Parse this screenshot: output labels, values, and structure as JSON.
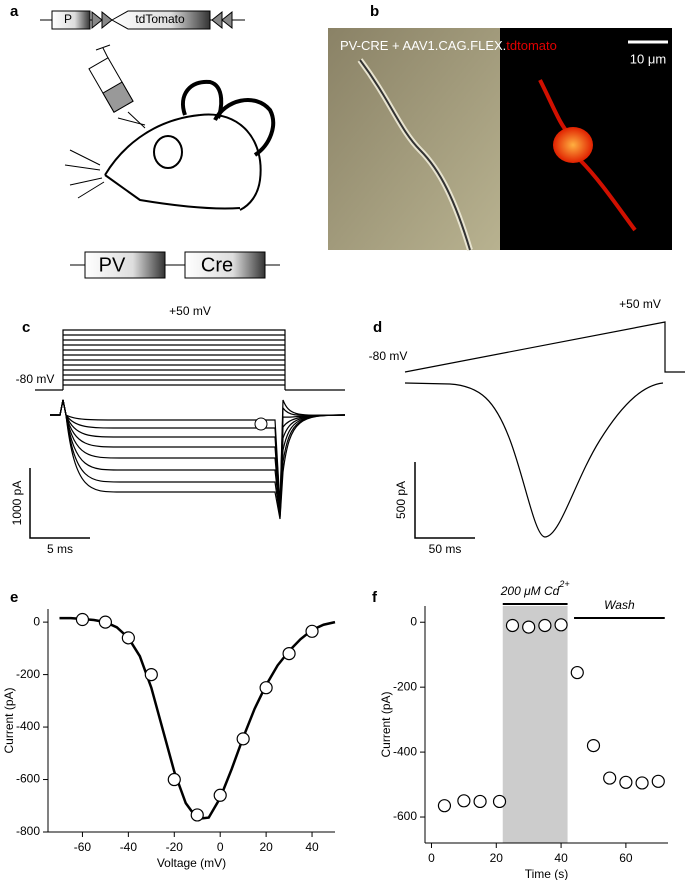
{
  "panels": {
    "a": {
      "label": "a",
      "promoter": "P",
      "reporter": "tdTomato",
      "gene1": "PV",
      "gene2": "Cre"
    },
    "b": {
      "label": "b",
      "caption": "PV-CRE + AAV1.CAG.FLEX.",
      "caption_red": "tdtomato",
      "scale": "10 μm"
    },
    "c": {
      "label": "c",
      "top_voltage": "+50 mV",
      "hold_voltage": "-80 mV",
      "scale_y": "1000 pA",
      "scale_x": "5 ms"
    },
    "d": {
      "label": "d",
      "top_voltage": "+50 mV",
      "hold_voltage": "-80 mV",
      "scale_y": "500 pA",
      "scale_x": "50 ms"
    }
  },
  "chart_data": [
    {
      "type": "scatter",
      "panel": "e",
      "xlabel": "Voltage (mV)",
      "ylabel": "Current (pA)",
      "xlim": [
        -75,
        50
      ],
      "ylim": [
        -800,
        50
      ],
      "xticks": [
        -60,
        -40,
        -20,
        0,
        20,
        40
      ],
      "yticks": [
        0,
        -200,
        -400,
        -600,
        -800
      ],
      "series": [
        {
          "color": "#000000",
          "marker": "circle",
          "x": [
            -60,
            -50,
            -40,
            -30,
            -20,
            -10,
            0,
            10,
            20,
            30,
            40
          ],
          "values": [
            10,
            0,
            -60,
            -200,
            -600,
            -735,
            -660,
            -445,
            -250,
            -120,
            -35
          ]
        },
        {
          "color": "#000000",
          "marker": "line",
          "x": [
            -70,
            -65,
            -60,
            -55,
            -50,
            -45,
            -40,
            -35,
            -30,
            -25,
            -20,
            -15,
            -10,
            -5,
            0,
            5,
            10,
            15,
            20,
            25,
            30,
            35,
            40,
            45,
            50
          ],
          "values": [
            15,
            15,
            12,
            8,
            0,
            -20,
            -60,
            -130,
            -250,
            -410,
            -570,
            -690,
            -750,
            -745,
            -670,
            -560,
            -440,
            -330,
            -240,
            -165,
            -110,
            -65,
            -30,
            -10,
            0
          ]
        }
      ]
    },
    {
      "type": "scatter",
      "panel": "f",
      "xlabel": "Time (s)",
      "ylabel": "Current (pA)",
      "xlim": [
        -2,
        73
      ],
      "ylim": [
        -680,
        50
      ],
      "xticks": [
        0,
        20,
        40,
        60
      ],
      "yticks": [
        0,
        -200,
        -400,
        -600
      ],
      "shade": [
        22,
        42
      ],
      "shade_color": "#cccccc",
      "bars": [
        {
          "label": "200 μM Cd",
          "sup": "2+",
          "x": [
            22,
            42
          ]
        },
        {
          "label": "Wash",
          "x": [
            44,
            72
          ]
        }
      ],
      "series": [
        {
          "color": "#000000",
          "marker": "circle",
          "x": [
            4,
            10,
            15,
            21,
            25,
            30,
            35,
            40,
            45,
            50,
            55,
            60,
            65,
            70
          ],
          "values": [
            -565,
            -550,
            -552,
            -552,
            -10,
            -15,
            -10,
            -8,
            -155,
            -380,
            -480,
            -493,
            -495,
            -490
          ]
        }
      ]
    }
  ]
}
